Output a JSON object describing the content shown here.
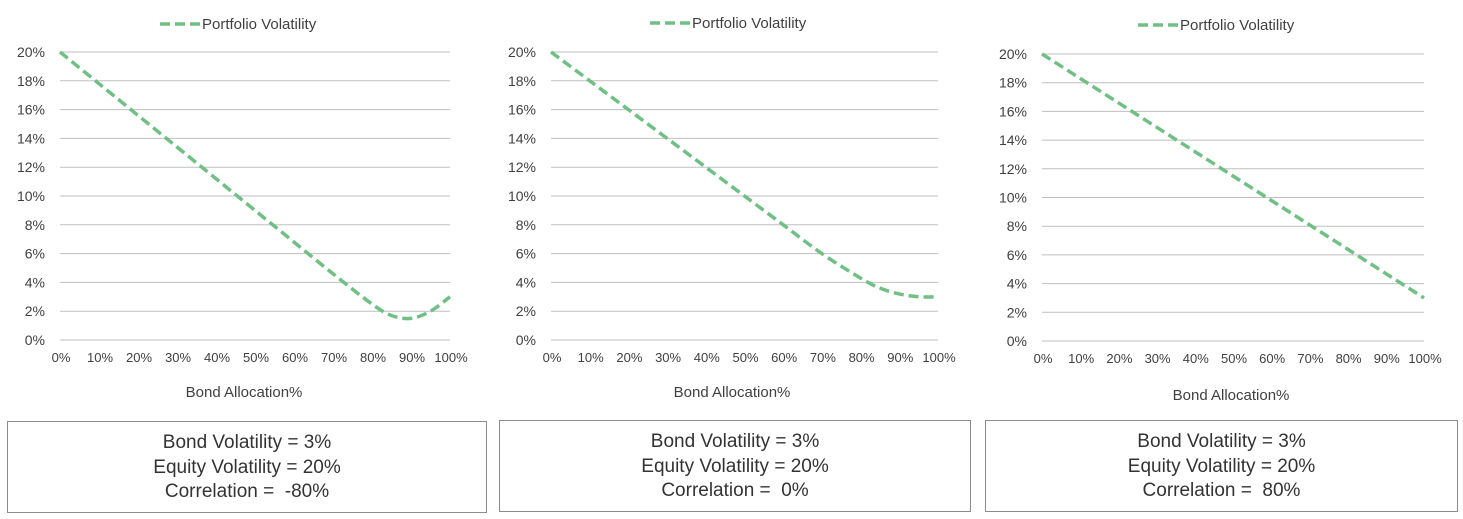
{
  "colors": {
    "series": "#70bf85",
    "grid": "#bfbfbf",
    "axis": "#bfbfbf",
    "text": "#404040"
  },
  "chart_data": [
    {
      "type": "line",
      "legend": {
        "label": "Portfolio Volatility",
        "position": "top-center"
      },
      "xlabel": "Bond Allocation%",
      "ylabel": "",
      "x_ticks": [
        "0%",
        "10%",
        "20%",
        "30%",
        "40%",
        "50%",
        "60%",
        "70%",
        "80%",
        "90%",
        "100%"
      ],
      "y_ticks": [
        "0%",
        "2%",
        "4%",
        "6%",
        "8%",
        "10%",
        "12%",
        "14%",
        "16%",
        "18%",
        "20%"
      ],
      "ylim": [
        0,
        20
      ],
      "xlim": [
        0,
        100
      ],
      "grid": "horizontal",
      "series": [
        {
          "name": "Portfolio Volatility",
          "line_style": "dashed",
          "x": [
            0,
            10,
            20,
            30,
            40,
            50,
            60,
            70,
            80,
            85,
            90,
            95,
            100
          ],
          "values": [
            20.0,
            17.8,
            15.6,
            13.4,
            11.2,
            9.0,
            6.8,
            4.6,
            2.5,
            1.7,
            1.5,
            2.0,
            3.0
          ]
        }
      ],
      "info": {
        "line1": "Bond Volatility = 3%",
        "line2": "Equity Volatility = 20%",
        "line3": "Correlation =  -80%"
      }
    },
    {
      "type": "line",
      "legend": {
        "label": "Portfolio Volatility",
        "position": "top-center"
      },
      "xlabel": "Bond Allocation%",
      "ylabel": "",
      "x_ticks": [
        "0%",
        "10%",
        "20%",
        "30%",
        "40%",
        "50%",
        "60%",
        "70%",
        "80%",
        "90%",
        "100%"
      ],
      "y_ticks": [
        "0%",
        "2%",
        "4%",
        "6%",
        "8%",
        "10%",
        "12%",
        "14%",
        "16%",
        "18%",
        "20%"
      ],
      "ylim": [
        0,
        20
      ],
      "xlim": [
        0,
        100
      ],
      "grid": "horizontal",
      "series": [
        {
          "name": "Portfolio Volatility",
          "line_style": "dashed",
          "x": [
            0,
            10,
            20,
            30,
            40,
            50,
            60,
            70,
            80,
            85,
            90,
            95,
            100
          ],
          "values": [
            20.0,
            18.0,
            16.0,
            14.0,
            12.0,
            10.0,
            8.0,
            6.0,
            4.3,
            3.6,
            3.2,
            3.0,
            3.0
          ]
        }
      ],
      "info": {
        "line1": "Bond Volatility = 3%",
        "line2": "Equity Volatility = 20%",
        "line3": "Correlation =  0%"
      }
    },
    {
      "type": "line",
      "legend": {
        "label": "Portfolio Volatility",
        "position": "top-center"
      },
      "xlabel": "Bond Allocation%",
      "ylabel": "",
      "x_ticks": [
        "0%",
        "10%",
        "20%",
        "30%",
        "40%",
        "50%",
        "60%",
        "70%",
        "80%",
        "90%",
        "100%"
      ],
      "y_ticks": [
        "0%",
        "2%",
        "4%",
        "6%",
        "8%",
        "10%",
        "12%",
        "14%",
        "16%",
        "18%",
        "20%"
      ],
      "ylim": [
        0,
        20
      ],
      "xlim": [
        0,
        100
      ],
      "grid": "horizontal",
      "series": [
        {
          "name": "Portfolio Volatility",
          "line_style": "dashed",
          "x": [
            0,
            10,
            20,
            30,
            40,
            50,
            60,
            70,
            80,
            90,
            100
          ],
          "values": [
            20.0,
            18.3,
            16.6,
            14.9,
            13.2,
            11.5,
            9.8,
            8.1,
            6.4,
            4.7,
            3.0
          ]
        }
      ],
      "info": {
        "line1": "Bond Volatility = 3%",
        "line2": "Equity Volatility = 20%",
        "line3": "Correlation =  80%"
      }
    }
  ]
}
